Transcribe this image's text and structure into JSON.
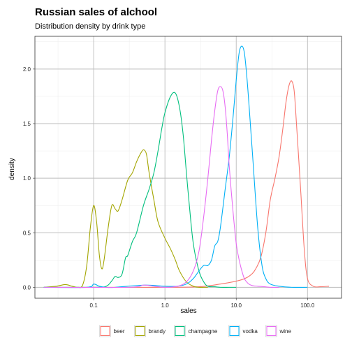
{
  "chart_data": {
    "type": "line",
    "title": "Russian sales of alchool",
    "subtitle": "Distribution density by drink type",
    "xlabel": "sales",
    "ylabel": "density",
    "x_scale": "log10",
    "xlim": [
      0.015,
      300
    ],
    "ylim": [
      -0.1,
      2.3
    ],
    "x_ticks": [
      {
        "value": 0.1,
        "label": "0.1"
      },
      {
        "value": 1,
        "label": "1.0"
      },
      {
        "value": 10,
        "label": "10.0"
      },
      {
        "value": 100,
        "label": "100.0"
      }
    ],
    "y_ticks": [
      {
        "value": 0,
        "label": "0.0"
      },
      {
        "value": 0.5,
        "label": "0.5"
      },
      {
        "value": 1,
        "label": "1.0"
      },
      {
        "value": 1.5,
        "label": "1.5"
      },
      {
        "value": 2,
        "label": "2.0"
      }
    ],
    "grid": true,
    "legend_position": "bottom",
    "series": [
      {
        "name": "beer",
        "color": "#F8766D",
        "x": [
          0.02,
          0.3,
          1,
          3,
          6,
          9,
          12,
          15,
          18,
          22,
          26,
          30,
          35,
          40,
          45,
          50,
          55,
          60,
          65,
          70,
          80,
          90,
          100,
          120,
          150,
          200
        ],
        "y": [
          0.0,
          0.0,
          0.0,
          0.005,
          0.03,
          0.05,
          0.07,
          0.1,
          0.15,
          0.27,
          0.5,
          0.8,
          1.0,
          1.2,
          1.45,
          1.7,
          1.85,
          1.89,
          1.8,
          1.5,
          0.9,
          0.35,
          0.08,
          0.01,
          0.005,
          0.01
        ]
      },
      {
        "name": "brandy",
        "color": "#A3A500",
        "x": [
          0.02,
          0.03,
          0.04,
          0.05,
          0.06,
          0.07,
          0.08,
          0.09,
          0.1,
          0.11,
          0.12,
          0.13,
          0.14,
          0.16,
          0.18,
          0.2,
          0.22,
          0.25,
          0.3,
          0.35,
          0.4,
          0.45,
          0.5,
          0.55,
          0.6,
          0.7,
          0.8,
          1,
          1.2,
          1.4,
          1.6,
          2,
          2.5,
          3,
          3.5,
          4
        ],
        "y": [
          0.0,
          0.01,
          0.025,
          0.01,
          0.0,
          0.02,
          0.2,
          0.55,
          0.75,
          0.6,
          0.3,
          0.17,
          0.25,
          0.55,
          0.75,
          0.72,
          0.7,
          0.8,
          0.98,
          1.05,
          1.15,
          1.22,
          1.26,
          1.22,
          1.05,
          0.8,
          0.6,
          0.45,
          0.35,
          0.25,
          0.15,
          0.05,
          0.01,
          0.0,
          0.0,
          0.0
        ]
      },
      {
        "name": "champagne",
        "color": "#00BF7D",
        "x": [
          0.02,
          0.1,
          0.15,
          0.18,
          0.2,
          0.22,
          0.25,
          0.28,
          0.3,
          0.35,
          0.4,
          0.5,
          0.6,
          0.7,
          0.8,
          0.9,
          1,
          1.2,
          1.4,
          1.6,
          1.8,
          2,
          2.2,
          2.5,
          3,
          3.5,
          4,
          5,
          6,
          8,
          10
        ],
        "y": [
          0.0,
          0.0,
          0.01,
          0.06,
          0.1,
          0.09,
          0.12,
          0.27,
          0.29,
          0.42,
          0.5,
          0.75,
          0.9,
          1.05,
          1.25,
          1.45,
          1.6,
          1.75,
          1.78,
          1.65,
          1.4,
          1.05,
          0.75,
          0.4,
          0.15,
          0.05,
          0.01,
          0.005,
          0.0,
          0.0,
          0.0
        ]
      },
      {
        "name": "vodka",
        "color": "#00B0F6",
        "x": [
          0.02,
          0.08,
          0.1,
          0.12,
          0.15,
          0.2,
          0.5,
          1,
          1.5,
          2,
          2.5,
          3,
          3.5,
          4,
          4.5,
          5,
          5.5,
          6,
          7,
          8,
          9,
          10,
          11,
          12,
          13,
          14,
          15,
          17,
          20,
          23,
          26,
          30,
          40,
          60,
          100
        ],
        "y": [
          0.0,
          0.0,
          0.03,
          0.01,
          0.0,
          0.0,
          0.02,
          0.01,
          0.01,
          0.03,
          0.08,
          0.15,
          0.2,
          0.2,
          0.25,
          0.38,
          0.42,
          0.55,
          0.9,
          1.2,
          1.55,
          1.9,
          2.15,
          2.21,
          2.15,
          1.95,
          1.7,
          1.2,
          0.55,
          0.2,
          0.08,
          0.03,
          0.01,
          0.0,
          0.0
        ]
      },
      {
        "name": "wine",
        "color": "#E76BF3",
        "x": [
          0.02,
          0.3,
          0.5,
          0.7,
          1,
          1.5,
          2,
          2.5,
          3,
          3.5,
          4,
          4.5,
          5,
          5.5,
          6,
          6.5,
          7,
          7.5,
          8,
          9,
          10,
          11,
          12,
          13,
          14,
          15,
          17,
          20,
          25,
          30,
          40
        ],
        "y": [
          0.0,
          0.0,
          0.02,
          0.01,
          0.0,
          0.01,
          0.05,
          0.15,
          0.33,
          0.65,
          1.0,
          1.35,
          1.62,
          1.8,
          1.84,
          1.8,
          1.65,
          1.4,
          1.1,
          0.7,
          0.4,
          0.25,
          0.15,
          0.08,
          0.05,
          0.03,
          0.015,
          0.01,
          0.005,
          0.0,
          0.0
        ]
      }
    ]
  }
}
